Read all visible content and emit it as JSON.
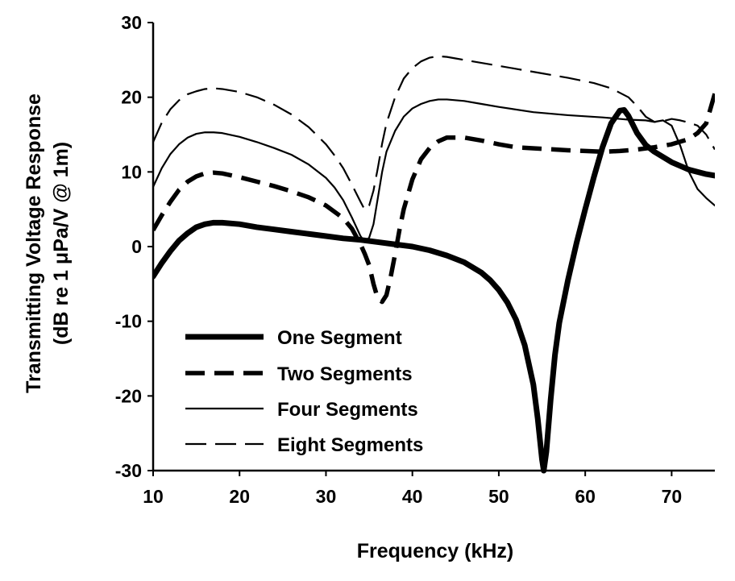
{
  "chart_data": {
    "type": "line",
    "title": "",
    "xlabel": "Frequency (kHz)",
    "ylabel_line1": "Transmitting Voltage Response",
    "ylabel_line2": "(dB re 1 μPa/V @ 1m)",
    "xlim": [
      10,
      75
    ],
    "ylim": [
      -30,
      30
    ],
    "x_ticks": [
      10,
      20,
      30,
      40,
      50,
      60,
      70
    ],
    "y_ticks": [
      -30,
      -20,
      -10,
      0,
      10,
      20,
      30
    ],
    "x_tick_labels": [
      "10",
      "20",
      "30",
      "40",
      "50",
      "60",
      "70"
    ],
    "y_tick_labels": [
      "-30",
      "-20",
      "-10",
      "0",
      "10",
      "20",
      "30"
    ],
    "grid": false,
    "legend_position": "lower-left",
    "series": [
      {
        "name": "One Segment",
        "style": "solid-thick",
        "x": [
          10,
          11,
          12,
          13,
          14,
          15,
          16,
          17,
          18,
          20,
          22,
          24,
          26,
          28,
          30,
          32,
          34,
          36,
          38,
          40,
          42,
          44,
          46,
          48,
          49,
          50,
          51,
          52,
          53,
          54,
          54.5,
          55,
          55.2,
          55.5,
          56,
          56.5,
          57,
          58,
          59,
          60,
          61,
          62,
          63,
          64,
          64.5,
          65,
          66,
          67,
          68,
          70,
          72,
          74,
          75
        ],
        "y": [
          -4,
          -2.2,
          -0.6,
          0.8,
          1.8,
          2.6,
          3.0,
          3.2,
          3.2,
          3.0,
          2.6,
          2.3,
          2.0,
          1.7,
          1.4,
          1.1,
          0.9,
          0.6,
          0.3,
          0.0,
          -0.5,
          -1.2,
          -2.1,
          -3.5,
          -4.5,
          -5.8,
          -7.5,
          -9.8,
          -13.2,
          -18.5,
          -23,
          -28.5,
          -30,
          -27.5,
          -20.5,
          -14.5,
          -10.2,
          -4.5,
          0.5,
          5.0,
          9.3,
          13.3,
          16.5,
          18.2,
          18.3,
          17.5,
          15.2,
          13.6,
          12.7,
          11.3,
          10.3,
          9.7,
          9.5
        ]
      },
      {
        "name": "Two Segments",
        "style": "dashed-thick",
        "x": [
          10,
          11,
          12,
          13,
          14,
          15,
          16,
          17,
          18,
          20,
          22,
          24,
          26,
          28,
          30,
          32,
          33,
          34,
          34.5,
          35,
          35.5,
          36,
          36.5,
          37,
          37.5,
          38,
          38.5,
          39,
          40,
          41,
          42,
          43,
          44,
          46,
          48,
          50,
          52,
          55,
          58,
          60,
          62,
          64,
          66,
          68,
          70,
          72,
          73,
          74,
          75
        ],
        "y": [
          2.2,
          4.2,
          6.0,
          7.6,
          8.7,
          9.4,
          9.8,
          9.9,
          9.8,
          9.3,
          8.7,
          8.1,
          7.4,
          6.6,
          5.5,
          3.8,
          2.4,
          0.3,
          -1.0,
          -2.5,
          -5.0,
          -7.0,
          -7.4,
          -6.5,
          -4.0,
          -1.0,
          2.2,
          5.0,
          9.0,
          11.7,
          13.2,
          14.1,
          14.6,
          14.6,
          14.2,
          13.7,
          13.3,
          13.1,
          12.9,
          12.8,
          12.7,
          12.8,
          13.0,
          13.3,
          13.7,
          14.4,
          15.2,
          16.5,
          20.5
        ]
      },
      {
        "name": "Four Segments",
        "style": "solid-thin",
        "x": [
          10,
          11,
          12,
          13,
          14,
          15,
          16,
          17,
          18,
          20,
          22,
          24,
          26,
          28,
          30,
          31,
          32,
          33,
          34,
          34.5,
          35,
          35.5,
          36,
          36.5,
          37,
          38,
          39,
          40,
          41,
          42,
          43,
          44,
          46,
          48,
          50,
          54,
          58,
          62,
          65,
          67,
          68,
          69,
          70,
          71,
          72,
          73,
          74,
          75
        ],
        "y": [
          8.0,
          10.5,
          12.4,
          13.7,
          14.6,
          15.1,
          15.3,
          15.3,
          15.2,
          14.7,
          14.0,
          13.2,
          12.3,
          11.0,
          9.2,
          7.9,
          6.2,
          3.9,
          1.4,
          0.6,
          1.2,
          3.0,
          6.5,
          10.0,
          12.7,
          15.5,
          17.4,
          18.5,
          19.1,
          19.5,
          19.7,
          19.7,
          19.5,
          19.1,
          18.7,
          18.0,
          17.6,
          17.3,
          17.0,
          16.9,
          16.7,
          16.9,
          16.2,
          13.5,
          10.0,
          7.7,
          6.5,
          5.5
        ]
      },
      {
        "name": "Eight Segments",
        "style": "dashed-thin",
        "x": [
          10,
          11,
          12,
          13,
          14,
          15,
          16,
          17,
          18,
          20,
          22,
          24,
          26,
          28,
          30,
          31,
          32,
          33,
          34,
          34.5,
          35,
          35.5,
          36,
          36.5,
          37,
          38,
          39,
          40,
          41,
          42,
          43,
          44,
          45,
          46,
          48,
          50,
          52,
          55,
          58,
          61,
          63,
          65,
          66,
          67,
          68,
          69,
          70,
          71,
          72,
          73,
          74,
          75
        ],
        "y": [
          14.0,
          16.6,
          18.4,
          19.6,
          20.4,
          20.8,
          21.1,
          21.2,
          21.1,
          20.7,
          20.0,
          19.0,
          17.7,
          16.0,
          13.7,
          12.2,
          10.5,
          8.3,
          6.0,
          4.9,
          5.5,
          7.5,
          10.5,
          13.8,
          16.5,
          20.0,
          22.5,
          23.9,
          24.8,
          25.3,
          25.5,
          25.4,
          25.2,
          25.0,
          24.6,
          24.2,
          23.8,
          23.2,
          22.6,
          21.9,
          21.2,
          20.0,
          18.8,
          17.4,
          16.7,
          16.8,
          17.1,
          16.9,
          16.6,
          16.2,
          15.0,
          13.0
        ]
      }
    ]
  }
}
